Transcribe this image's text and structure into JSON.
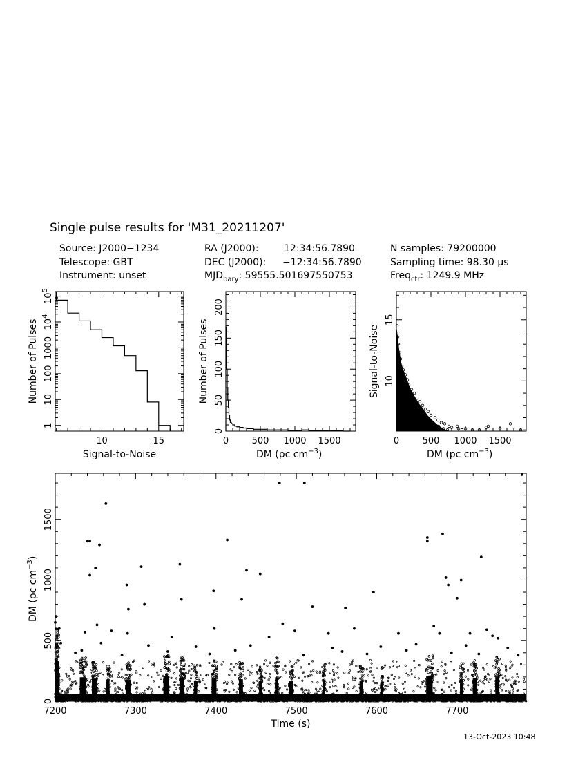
{
  "header": {
    "title": "Single pulse results for 'M31_20211207'",
    "source": "Source: J2000−1234",
    "telescope": "Telescope: GBT",
    "instrument": "Instrument: unset",
    "ra_label": "RA (J2000):",
    "ra_value": "12:34:56.7890",
    "dec_label": "DEC (J2000):",
    "dec_value": "−12:34:56.7890",
    "mjd_prefix": "MJD",
    "mjd_sub": "bary",
    "mjd_value": ": 59555.501697550753",
    "nsamples": "N samples: 79200000",
    "sampling_prefix": "Sampling time: 98.30 ",
    "sampling_unit": "μs",
    "freq_prefix": "Freq",
    "freq_sub": "ctr",
    "freq_value": ": 1249.9 MHz"
  },
  "footer": {
    "timestamp": "13-Oct-2023 10:48"
  },
  "chart_data": [
    {
      "type": "histogram-step",
      "name": "snr-histogram",
      "xlabel": "Signal-to-Noise",
      "ylabel": "Number of Pulses",
      "log_y": true,
      "xlim": [
        5.9,
        17.2
      ],
      "ylim": [
        0.6,
        150000
      ],
      "x_ticks": [
        10,
        15
      ],
      "y_ticks": [
        {
          "v": 1,
          "label": "1"
        },
        {
          "v": 10,
          "label": "10"
        },
        {
          "v": 100,
          "label": "100"
        },
        {
          "v": 1000,
          "label": "1000"
        },
        {
          "v": 10000,
          "label": "10",
          "exp": "4"
        },
        {
          "v": 100000,
          "label": "10",
          "exp": "5"
        }
      ],
      "bin_edges": [
        6,
        7,
        8,
        9,
        10,
        11,
        12,
        13,
        14,
        15
      ],
      "counts": [
        70000,
        22000,
        11000,
        5000,
        2500,
        1200,
        500,
        130,
        8,
        1
      ]
    },
    {
      "type": "histogram-step",
      "name": "dm-histogram",
      "xlabel": "DM (pc cm",
      "xlabel_exp": "−3",
      "xlabel_tail": ")",
      "ylabel": "Number of Pulses",
      "xlim": [
        0,
        1880
      ],
      "ylim": [
        0,
        225
      ],
      "x_ticks": [
        0,
        500,
        1000,
        1500
      ],
      "y_ticks": [
        0,
        50,
        100,
        150,
        200
      ],
      "bins": [
        {
          "x": 5,
          "y": 168
        },
        {
          "x": 12,
          "y": 145
        },
        {
          "x": 20,
          "y": 100
        },
        {
          "x": 28,
          "y": 70
        },
        {
          "x": 36,
          "y": 50
        },
        {
          "x": 45,
          "y": 38
        },
        {
          "x": 55,
          "y": 25
        },
        {
          "x": 65,
          "y": 18
        },
        {
          "x": 80,
          "y": 14
        },
        {
          "x": 100,
          "y": 12
        },
        {
          "x": 130,
          "y": 10
        },
        {
          "x": 160,
          "y": 8
        },
        {
          "x": 200,
          "y": 7
        },
        {
          "x": 250,
          "y": 6
        },
        {
          "x": 300,
          "y": 5
        },
        {
          "x": 400,
          "y": 4
        },
        {
          "x": 500,
          "y": 3
        },
        {
          "x": 600,
          "y": 3
        },
        {
          "x": 700,
          "y": 2
        },
        {
          "x": 800,
          "y": 2
        },
        {
          "x": 900,
          "y": 2
        },
        {
          "x": 1000,
          "y": 1
        },
        {
          "x": 1100,
          "y": 1
        },
        {
          "x": 1200,
          "y": 2
        },
        {
          "x": 1300,
          "y": 1
        },
        {
          "x": 1400,
          "y": 1
        },
        {
          "x": 1500,
          "y": 1
        },
        {
          "x": 1600,
          "y": 1
        },
        {
          "x": 1700,
          "y": 1
        },
        {
          "x": 1800,
          "y": 0
        }
      ]
    },
    {
      "type": "scatter",
      "name": "snr-vs-dm",
      "xlabel": "DM (pc cm",
      "xlabel_exp": "−3",
      "xlabel_tail": ")",
      "ylabel": "Signal-to-Noise",
      "xlim": [
        0,
        1880
      ],
      "ylim": [
        5.9,
        17.3
      ],
      "x_ticks": [
        0,
        500,
        1000,
        1500
      ],
      "y_ticks": [
        10,
        15
      ],
      "points": [
        [
          10,
          14.5
        ],
        [
          20,
          13.6
        ],
        [
          30,
          13
        ],
        [
          45,
          12.3
        ],
        [
          60,
          11.8
        ],
        [
          80,
          11.2
        ],
        [
          100,
          10.9
        ],
        [
          130,
          10.5
        ],
        [
          160,
          10.1
        ],
        [
          180,
          9.7
        ],
        [
          220,
          9.3
        ],
        [
          260,
          9.0
        ],
        [
          300,
          8.6
        ],
        [
          340,
          8.3
        ],
        [
          380,
          8.0
        ],
        [
          420,
          7.7
        ],
        [
          460,
          7.5
        ],
        [
          500,
          7.2
        ],
        [
          560,
          7.0
        ],
        [
          600,
          6.8
        ],
        [
          650,
          6.6
        ],
        [
          700,
          6.5
        ],
        [
          760,
          6.3
        ],
        [
          800,
          6.2
        ],
        [
          900,
          6.1
        ],
        [
          1000,
          6.1
        ],
        [
          1100,
          6.0
        ],
        [
          1200,
          6.0
        ],
        [
          1300,
          6.2
        ],
        [
          1330,
          6.3
        ],
        [
          1500,
          6.1
        ],
        [
          1650,
          6.5
        ],
        [
          1800,
          6.0
        ],
        [
          250,
          8.0
        ],
        [
          350,
          7.3
        ],
        [
          420,
          6.9
        ],
        [
          520,
          6.5
        ],
        [
          610,
          6.3
        ],
        [
          740,
          6.0
        ],
        [
          880,
          6.3
        ],
        [
          950,
          6.0
        ],
        [
          150,
          9.0
        ],
        [
          200,
          8.2
        ],
        [
          280,
          7.6
        ],
        [
          330,
          7.0
        ],
        [
          480,
          6.6
        ],
        [
          580,
          6.2
        ],
        [
          680,
          6.1
        ]
      ]
    },
    {
      "type": "scatter",
      "name": "dm-vs-time",
      "xlabel": "Time (s)",
      "ylabel": "DM (pc cm",
      "ylabel_exp": "−3",
      "ylabel_tail": ")",
      "xlim": [
        7200,
        7786
      ],
      "ylim": [
        0,
        1880
      ],
      "x_ticks": [
        7200,
        7300,
        7400,
        7500,
        7600,
        7700
      ],
      "y_ticks": [
        0,
        500,
        1000,
        1500
      ],
      "points": [
        [
          7200,
          650
        ],
        [
          7201,
          700
        ],
        [
          7203,
          450
        ],
        [
          7205,
          600
        ],
        [
          7207,
          480
        ],
        [
          7240,
          1320
        ],
        [
          7243,
          1320
        ],
        [
          7255,
          1290
        ],
        [
          7263,
          1630
        ],
        [
          7243,
          1040
        ],
        [
          7250,
          1100
        ],
        [
          7289,
          960
        ],
        [
          7307,
          1110
        ],
        [
          7355,
          1130
        ],
        [
          7414,
          1330
        ],
        [
          7438,
          1080
        ],
        [
          7455,
          1050
        ],
        [
          7397,
          910
        ],
        [
          7291,
          760
        ],
        [
          7311,
          800
        ],
        [
          7357,
          840
        ],
        [
          7432,
          840
        ],
        [
          7479,
          1800
        ],
        [
          7510,
          1800
        ],
        [
          7520,
          780
        ],
        [
          7561,
          770
        ],
        [
          7596,
          900
        ],
        [
          7663,
          1350
        ],
        [
          7663,
          1320
        ],
        [
          7682,
          1380
        ],
        [
          7686,
          1020
        ],
        [
          7689,
          960
        ],
        [
          7705,
          1000
        ],
        [
          7700,
          850
        ],
        [
          7730,
          1190
        ],
        [
          7781,
          1870
        ],
        [
          7237,
          570
        ],
        [
          7252,
          630
        ],
        [
          7270,
          580
        ],
        [
          7290,
          560
        ],
        [
          7345,
          530
        ],
        [
          7398,
          600
        ],
        [
          7466,
          530
        ],
        [
          7483,
          640
        ],
        [
          7498,
          580
        ],
        [
          7540,
          560
        ],
        [
          7572,
          600
        ],
        [
          7627,
          560
        ],
        [
          7671,
          620
        ],
        [
          7678,
          560
        ],
        [
          7716,
          560
        ],
        [
          7737,
          590
        ],
        [
          7744,
          540
        ],
        [
          7751,
          520
        ],
        [
          7257,
          480
        ],
        [
          7316,
          460
        ],
        [
          7375,
          450
        ],
        [
          7443,
          460
        ],
        [
          7545,
          440
        ],
        [
          7605,
          450
        ],
        [
          7649,
          470
        ],
        [
          7711,
          460
        ],
        [
          7763,
          440
        ],
        [
          7225,
          400
        ],
        [
          7233,
          420
        ],
        [
          7283,
          380
        ],
        [
          7340,
          410
        ],
        [
          7392,
          390
        ],
        [
          7424,
          420
        ],
        [
          7509,
          380
        ],
        [
          7557,
          410
        ],
        [
          7588,
          390
        ],
        [
          7637,
          420
        ],
        [
          7693,
          400
        ],
        [
          7727,
          390
        ],
        [
          7776,
          380
        ]
      ],
      "bursts": [
        {
          "t": 7200,
          "w": 5,
          "h": 600,
          "n": 90
        },
        {
          "t": 7231,
          "w": 8,
          "h": 360,
          "n": 60
        },
        {
          "t": 7246,
          "w": 6,
          "h": 340,
          "n": 45
        },
        {
          "t": 7264,
          "w": 4,
          "h": 300,
          "n": 30
        },
        {
          "t": 7288,
          "w": 6,
          "h": 320,
          "n": 40
        },
        {
          "t": 7335,
          "w": 7,
          "h": 380,
          "n": 55
        },
        {
          "t": 7355,
          "w": 6,
          "h": 360,
          "n": 45
        },
        {
          "t": 7373,
          "w": 4,
          "h": 300,
          "n": 30
        },
        {
          "t": 7395,
          "w": 6,
          "h": 340,
          "n": 40
        },
        {
          "t": 7429,
          "w": 5,
          "h": 330,
          "n": 40
        },
        {
          "t": 7454,
          "w": 4,
          "h": 300,
          "n": 35
        },
        {
          "t": 7474,
          "w": 4,
          "h": 360,
          "n": 45
        },
        {
          "t": 7491,
          "w": 5,
          "h": 300,
          "n": 35
        },
        {
          "t": 7533,
          "w": 3,
          "h": 320,
          "n": 30
        },
        {
          "t": 7579,
          "w": 4,
          "h": 300,
          "n": 30
        },
        {
          "t": 7605,
          "w": 3,
          "h": 280,
          "n": 25
        },
        {
          "t": 7662,
          "w": 8,
          "h": 380,
          "n": 55
        },
        {
          "t": 7704,
          "w": 4,
          "h": 330,
          "n": 35
        },
        {
          "t": 7720,
          "w": 5,
          "h": 350,
          "n": 40
        },
        {
          "t": 7748,
          "w": 5,
          "h": 370,
          "n": 40
        }
      ]
    }
  ]
}
